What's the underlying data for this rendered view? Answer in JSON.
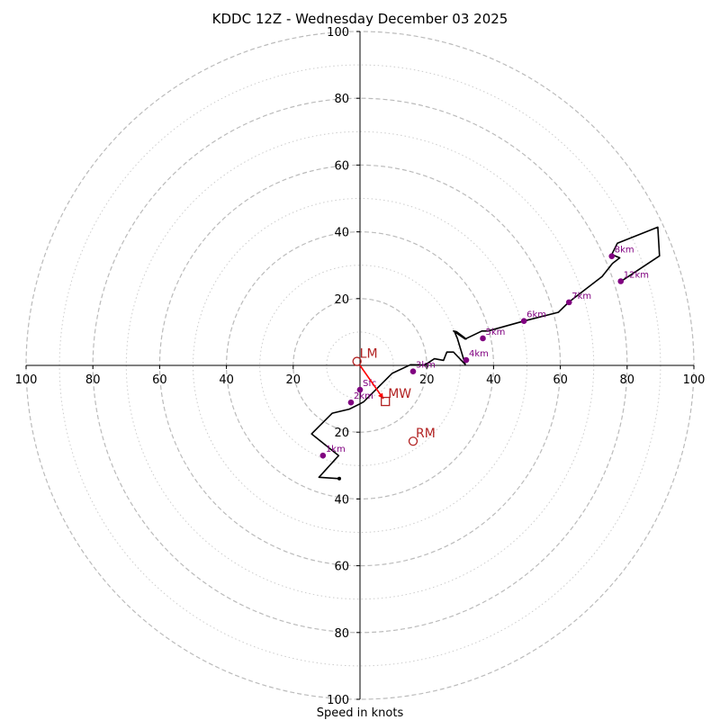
{
  "chart_data": {
    "type": "hodograph",
    "title": "KDDC 12Z - Wednesday December 03 2025",
    "xlabel": "Speed in knots",
    "ylabel": "",
    "range": 100,
    "ring_interval": 20,
    "minor_ring_interval": 10,
    "x_ticks": [
      {
        "value": -100,
        "label": "100"
      },
      {
        "value": -80,
        "label": "80"
      },
      {
        "value": -60,
        "label": "60"
      },
      {
        "value": -40,
        "label": "40"
      },
      {
        "value": -20,
        "label": "20"
      },
      {
        "value": 20,
        "label": "20"
      },
      {
        "value": 40,
        "label": "40"
      },
      {
        "value": 60,
        "label": "60"
      },
      {
        "value": 80,
        "label": "80"
      },
      {
        "value": 100,
        "label": "100"
      }
    ],
    "y_ticks": [
      {
        "value": 100,
        "label": "100"
      },
      {
        "value": 80,
        "label": "80"
      },
      {
        "value": 60,
        "label": "60"
      },
      {
        "value": 40,
        "label": "40"
      },
      {
        "value": 20,
        "label": "20"
      },
      {
        "value": -20,
        "label": "20"
      },
      {
        "value": -40,
        "label": "40"
      },
      {
        "value": -60,
        "label": "60"
      },
      {
        "value": -80,
        "label": "80"
      },
      {
        "value": -100,
        "label": "100"
      }
    ],
    "trace": {
      "name": "hodograph",
      "color": "#000000",
      "u": [
        -6.2,
        -12.3,
        -6.4,
        -14.5,
        -8.3,
        -3.2,
        0.0,
        1.1,
        9.6,
        15.1,
        19.4,
        22.3,
        25.0,
        26.0,
        28.0,
        31.5,
        29.2,
        28.3,
        31.8,
        31.3,
        28.9,
        28.0,
        31.5,
        36.5,
        38.3,
        49.1,
        59.4,
        62.6,
        72.5,
        75.6,
        77.8,
        77.8,
        75.4,
        77.1,
        89.2,
        89.7,
        77.8
      ],
      "v": [
        -33.9,
        -33.5,
        -27.0,
        -20.5,
        -14.3,
        -13.1,
        -11.5,
        -10.9,
        -2.4,
        0.2,
        0.1,
        2.0,
        1.5,
        4.0,
        4.0,
        0.3,
        8.0,
        10.1,
        7.9,
        8.3,
        10.1,
        10.3,
        7.9,
        10.3,
        10.3,
        13.3,
        15.9,
        19.0,
        26.6,
        30.5,
        32.2,
        32.2,
        33.2,
        36.6,
        41.4,
        32.8,
        24.9
      ],
      "end_marker_u": -6.2,
      "end_marker_v": -33.9
    },
    "height_markers": [
      {
        "label": "Sfc",
        "u": 0.0,
        "v": -7.3
      },
      {
        "label": "1km",
        "u": -11.1,
        "v": -27.0
      },
      {
        "label": "2km",
        "u": -2.7,
        "v": -11.1
      },
      {
        "label": "3km",
        "u": 15.9,
        "v": -1.8
      },
      {
        "label": "4km",
        "u": 31.8,
        "v": 1.6
      },
      {
        "label": "5km",
        "u": 36.8,
        "v": 8.1
      },
      {
        "label": "6km",
        "u": 49.1,
        "v": 13.3
      },
      {
        "label": "7km",
        "u": 62.6,
        "v": 18.9
      },
      {
        "label": "8km",
        "u": 75.4,
        "v": 32.7
      },
      {
        "label": "12km",
        "u": 78.1,
        "v": 25.2
      }
    ],
    "marker_color": "#800080",
    "motion_color": "#b22222",
    "storm_motions": [
      {
        "label": "LM",
        "u": -0.9,
        "v": 1.2,
        "shape": "circle"
      },
      {
        "label": "MW",
        "u": 7.6,
        "v": -10.8,
        "shape": "square"
      },
      {
        "label": "RM",
        "u": 15.9,
        "v": -22.7,
        "shape": "circle"
      }
    ],
    "shear_vector": {
      "from_u": 0.0,
      "from_v": 0.0,
      "to_u": 7.0,
      "to_v": -10.0,
      "color": "#ff0000"
    }
  }
}
